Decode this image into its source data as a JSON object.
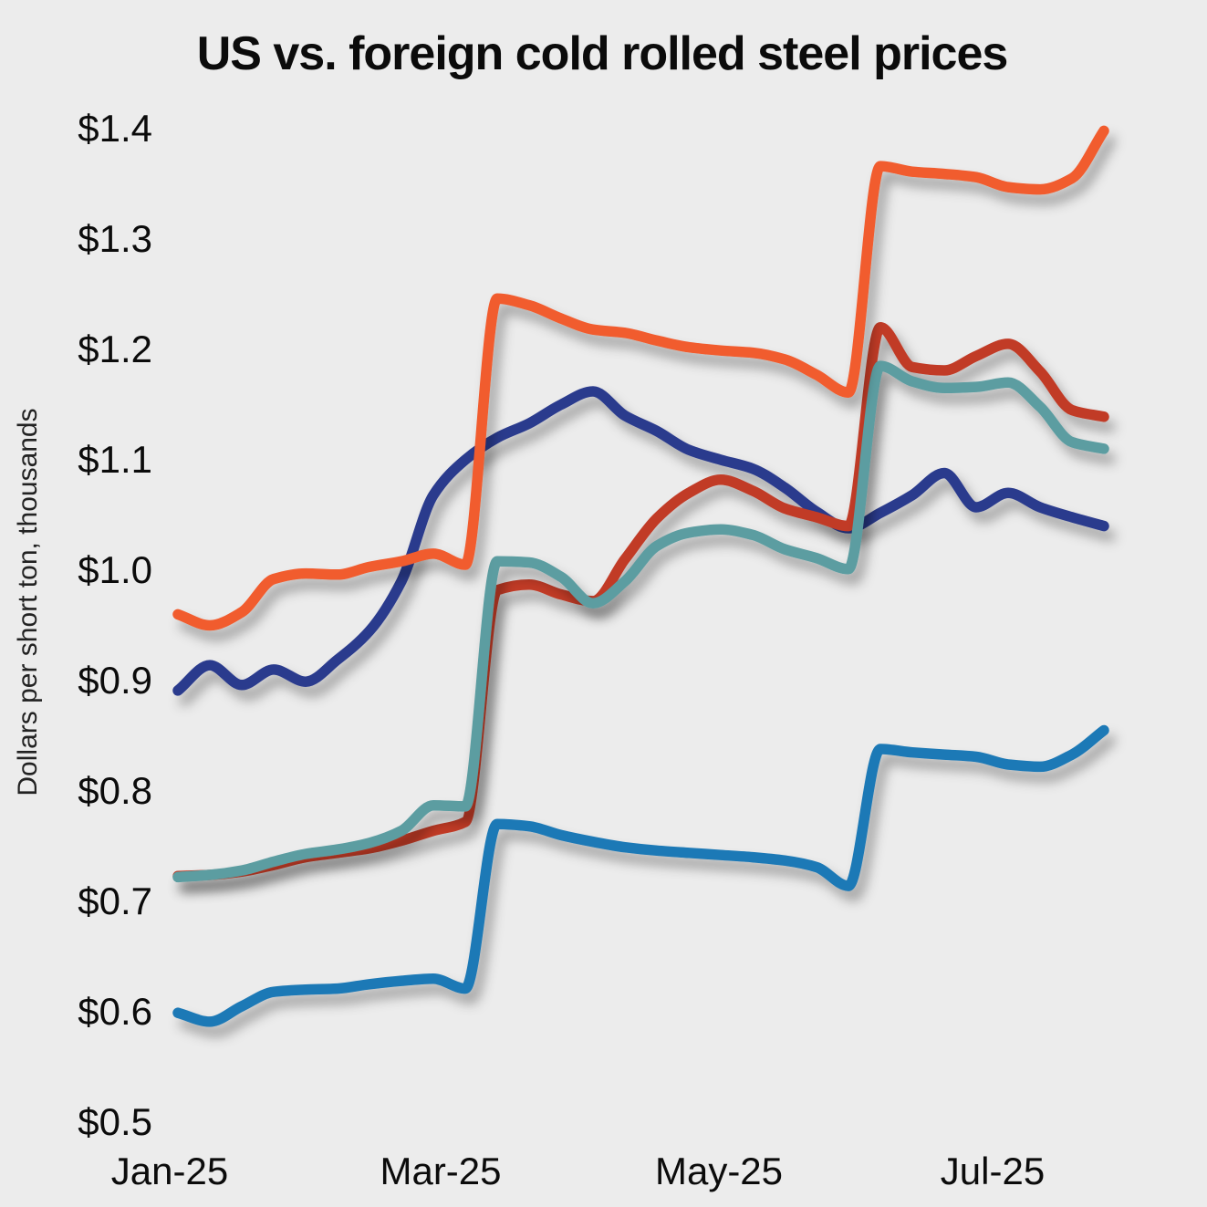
{
  "title": "US vs. foreign cold rolled steel prices",
  "y_axis": {
    "label": "Dollars per short ton, thousands",
    "tick_labels": [
      "$1.4",
      "$1.3",
      "$1.2",
      "$1.1",
      "$1.0",
      "$0.9",
      "$0.8",
      "$0.7",
      "$0.6",
      "$0.5"
    ],
    "tick_values": [
      1.4,
      1.3,
      1.2,
      1.1,
      1.0,
      0.9,
      0.8,
      0.7,
      0.6,
      0.5
    ]
  },
  "x_axis": {
    "tick_labels": [
      "Jan-25",
      "Mar-25",
      "May-25",
      "Jul-25"
    ]
  },
  "chart_data": {
    "type": "line",
    "title": "US vs. foreign cold rolled steel prices",
    "ylabel": "Dollars per short ton, thousands",
    "ylim": [
      0.5,
      1.4
    ],
    "grid": false,
    "legend": "none",
    "x_tick_labels": [
      "Jan-25",
      "Mar-25",
      "May-25",
      "Jul-25"
    ],
    "x": [
      "2025-01-03",
      "2025-01-10",
      "2025-01-17",
      "2025-01-24",
      "2025-01-31",
      "2025-02-07",
      "2025-02-14",
      "2025-02-21",
      "2025-02-28",
      "2025-03-07",
      "2025-03-14",
      "2025-03-21",
      "2025-03-28",
      "2025-04-04",
      "2025-04-11",
      "2025-04-18",
      "2025-04-25",
      "2025-05-02",
      "2025-05-09",
      "2025-05-16",
      "2025-05-23",
      "2025-05-30",
      "2025-06-06",
      "2025-06-13",
      "2025-06-20",
      "2025-06-27",
      "2025-07-04",
      "2025-07-11",
      "2025-07-18",
      "2025-07-25"
    ],
    "series": [
      {
        "name": "navy",
        "color": "#2C3B8D",
        "values": [
          0.891,
          0.914,
          0.896,
          0.91,
          0.899,
          0.919,
          0.945,
          0.99,
          1.068,
          1.1,
          1.12,
          1.133,
          1.15,
          1.162,
          1.14,
          1.126,
          1.109,
          1.1,
          1.092,
          1.075,
          1.053,
          1.038,
          1.052,
          1.068,
          1.088,
          1.057,
          1.07,
          1.057,
          1.048,
          1.04
        ]
      },
      {
        "name": "brick-red",
        "color": "#C13A27",
        "values": [
          0.723,
          0.724,
          0.727,
          0.733,
          0.74,
          0.744,
          0.748,
          0.755,
          0.764,
          0.772,
          0.982,
          0.987,
          0.978,
          0.972,
          1.01,
          1.047,
          1.07,
          1.082,
          1.072,
          1.056,
          1.048,
          1.04,
          1.22,
          1.184,
          1.181,
          1.194,
          1.205,
          1.18,
          1.145,
          1.139
        ]
      },
      {
        "name": "teal",
        "color": "#5B9DA1",
        "values": [
          0.722,
          0.724,
          0.728,
          0.736,
          0.743,
          0.747,
          0.753,
          0.764,
          0.787,
          0.786,
          1.008,
          1.007,
          0.994,
          0.97,
          0.99,
          1.022,
          1.034,
          1.037,
          1.032,
          1.019,
          1.011,
          1.001,
          1.185,
          1.171,
          1.165,
          1.166,
          1.17,
          1.148,
          1.116,
          1.11
        ]
      },
      {
        "name": "light-blue",
        "color": "#1F79B6",
        "values": [
          0.599,
          0.591,
          0.605,
          0.618,
          0.62,
          0.621,
          0.625,
          0.628,
          0.63,
          0.621,
          0.77,
          0.768,
          0.76,
          0.754,
          0.749,
          0.746,
          0.744,
          0.742,
          0.74,
          0.737,
          0.731,
          0.714,
          0.838,
          0.835,
          0.833,
          0.831,
          0.824,
          0.822,
          0.833,
          0.855
        ]
      },
      {
        "name": "orange",
        "color": "#F15B2D",
        "values": [
          0.96,
          0.95,
          0.962,
          0.992,
          0.997,
          0.996,
          1.003,
          1.008,
          1.015,
          1.005,
          1.246,
          1.24,
          1.228,
          1.218,
          1.215,
          1.208,
          1.202,
          1.199,
          1.197,
          1.191,
          1.177,
          1.161,
          1.366,
          1.361,
          1.359,
          1.356,
          1.347,
          1.345,
          1.355,
          1.398
        ]
      }
    ]
  }
}
